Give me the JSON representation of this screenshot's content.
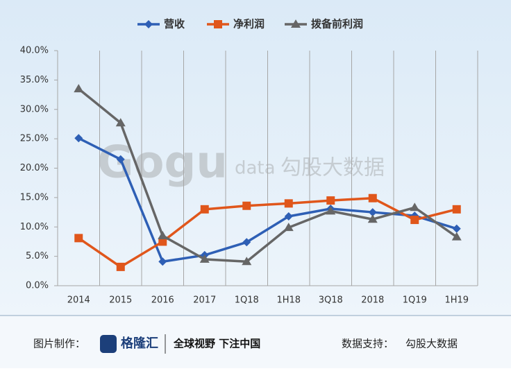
{
  "chart_data": {
    "type": "line",
    "categories": [
      "2014",
      "2015",
      "2016",
      "2017",
      "1Q18",
      "1H18",
      "3Q18",
      "2018",
      "1Q19",
      "1H19"
    ],
    "series": [
      {
        "name": "营收",
        "color": "#2e5fb5",
        "marker": "diamond",
        "values": [
          25.1,
          21.5,
          4.1,
          5.2,
          7.4,
          11.8,
          13.1,
          12.5,
          11.9,
          9.7
        ]
      },
      {
        "name": "净利润",
        "color": "#e0561b",
        "marker": "square",
        "values": [
          8.1,
          3.2,
          7.5,
          13.0,
          13.6,
          14.0,
          14.5,
          14.9,
          11.2,
          13.0
        ]
      },
      {
        "name": "拨备前利润",
        "color": "#666666",
        "marker": "triangle",
        "values": [
          33.5,
          27.7,
          8.5,
          4.5,
          4.1,
          9.9,
          12.7,
          11.3,
          13.3,
          8.3
        ]
      }
    ],
    "ylim": [
      0,
      40
    ],
    "yticks": [
      {
        "value": 0,
        "label": "0.0%"
      },
      {
        "value": 5,
        "label": "5.0%"
      },
      {
        "value": 10,
        "label": "10.0%"
      },
      {
        "value": 15,
        "label": "15.0%"
      },
      {
        "value": 20,
        "label": "20.0%"
      },
      {
        "value": 25,
        "label": "25.0%"
      },
      {
        "value": 30,
        "label": "30.0%"
      },
      {
        "value": 35,
        "label": "35.0%"
      },
      {
        "value": 40,
        "label": "40.0%"
      }
    ],
    "legend": "top"
  },
  "watermark": {
    "brand": "Gogu",
    "sub": "data",
    "name": "勾股大数据"
  },
  "footer": {
    "made_by_label": "图片制作：",
    "logo": "格隆汇",
    "slogan": "全球视野 下注中国",
    "source_label": "数据支持：",
    "source": "勾股大数据"
  }
}
